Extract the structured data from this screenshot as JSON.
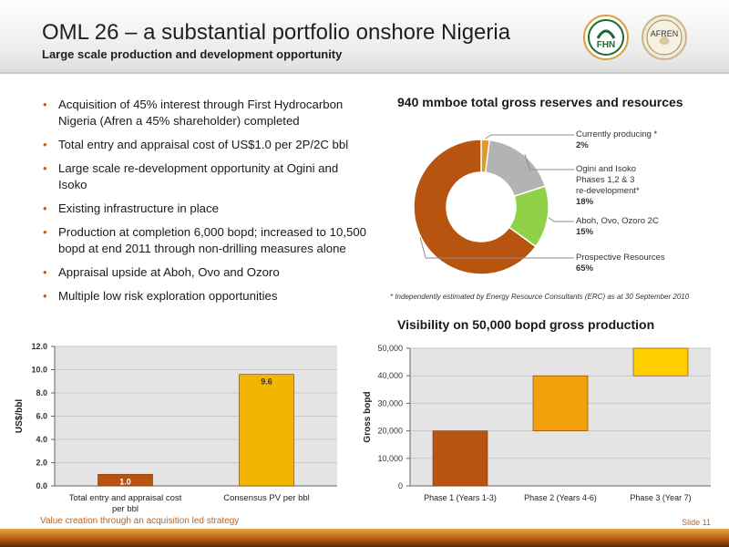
{
  "header": {
    "title": "OML 26 – a substantial portfolio onshore Nigeria",
    "subtitle": "Large scale production and development opportunity",
    "logo_left_text": "FHN",
    "logo_right_text": "AFREN"
  },
  "bullets": [
    "Acquisition of 45% interest through First Hydrocarbon Nigeria (Afren a 45% shareholder) completed",
    "Total entry and appraisal cost of US$1.0 per 2P/2C bbl",
    "Large scale re-development opportunity at Ogini and Isoko",
    "Existing infrastructure in place",
    "Production at completion 6,000 bopd; increased to 10,500 bopd at end 2011 through non-drilling measures alone",
    "Appraisal upside at Aboh, Ovo and Ozoro",
    "Multiple low risk exploration opportunities"
  ],
  "chart_data": [
    {
      "type": "pie",
      "title": "940 mmboe total gross reserves and resources",
      "slices": [
        {
          "label": "Currently producing *",
          "value": 2,
          "color": "#e39b28"
        },
        {
          "label": "Ogini and Isoko Phases 1,2 & 3 re-development*",
          "value": 18,
          "color": "#b3b3b3"
        },
        {
          "label": "Aboh, Ovo, Ozoro 2C",
          "value": 15,
          "color": "#8fd24a"
        },
        {
          "label": "Prospective Resources",
          "value": 65,
          "color": "#b7540f"
        }
      ],
      "legend_lines": [
        [
          "Currently producing *"
        ],
        [
          "Ogini and Isoko",
          "Phases 1,2 & 3",
          "re-development*"
        ],
        [
          "Aboh, Ovo, Ozoro 2C"
        ],
        [
          "Prospective Resources"
        ]
      ],
      "legend_values": [
        "2%",
        "18%",
        "15%",
        "65%"
      ],
      "note": "* Independently estimated by Energy Resource  Consultants (ERC) as at 30 September 2010"
    },
    {
      "type": "bar",
      "categories": [
        "Total entry and appraisal cost per bbl",
        "Consensus PV per bbl"
      ],
      "category_lines": [
        [
          "Total entry and appraisal cost",
          "per bbl"
        ],
        [
          "Consensus PV per bbl"
        ]
      ],
      "values": [
        1.0,
        9.6
      ],
      "data_labels": [
        "1.0",
        "9.6"
      ],
      "colors": [
        "#b7540f",
        "#f2b600"
      ],
      "ylabel": "US$/bbl",
      "ylim": [
        0,
        12
      ],
      "yticks": [
        "0.0",
        "2.0",
        "4.0",
        "6.0",
        "8.0",
        "10.0",
        "12.0"
      ],
      "grid": true
    },
    {
      "type": "bar",
      "title": "Visibility on 50,000 bopd gross production",
      "categories": [
        "Phase 1 (Years 1-3)",
        "Phase 2 (Years 4-6)",
        "Phase 3 (Year 7)"
      ],
      "ranges": [
        [
          0,
          20000
        ],
        [
          20000,
          40000
        ],
        [
          40000,
          50000
        ]
      ],
      "colors": [
        "#b7540f",
        "#f2a20a",
        "#ffcf00"
      ],
      "ylabel": "Gross bopd",
      "ylim": [
        0,
        50000
      ],
      "yticks": [
        "0",
        "10,000",
        "20,000",
        "30,000",
        "40,000",
        "50,000"
      ],
      "grid": true
    }
  ],
  "footer": {
    "text": "Value creation through an acquisition led strategy",
    "slide": "Slide 11"
  }
}
